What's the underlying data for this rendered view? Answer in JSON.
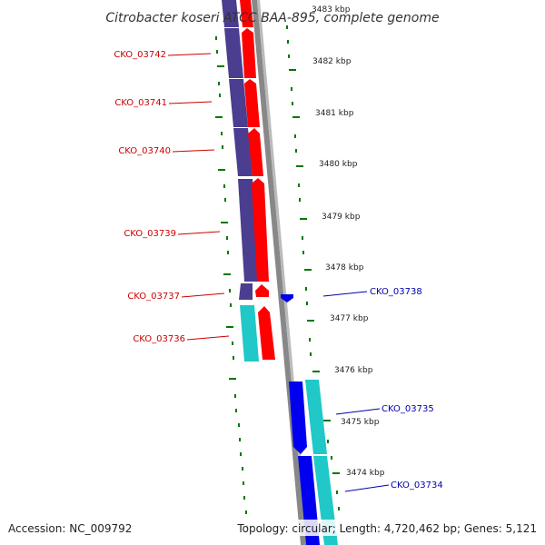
{
  "title": "Citrobacter koseri ATCC BAA-895, complete genome",
  "footer": {
    "accession": "Accession: NC_009792",
    "summary": "Topology: circular; Length: 4,720,462 bp; Genes: 5,121"
  },
  "colors": {
    "label_red": "#cc0000",
    "label_blue": "#0000aa",
    "gene_red": "#ff0000",
    "gene_purple": "#4b3d8f",
    "gene_cyan": "#20c8c8",
    "gene_blue": "#0000ee",
    "backbone": "#888888",
    "ticks": "#007700"
  },
  "scale_labels": [
    "3483 kbp",
    "3482 kbp",
    "3481 kbp",
    "3480 kbp",
    "3479 kbp",
    "3478 kbp",
    "3477 kbp",
    "3476 kbp",
    "3475 kbp",
    "3474 kbp"
  ],
  "genes_left": [
    "CKO_03742",
    "CKO_03741",
    "CKO_03740",
    "CKO_03739",
    "CKO_03737",
    "CKO_03736"
  ],
  "genes_right": [
    "CKO_03738",
    "CKO_03735",
    "CKO_03734"
  ]
}
